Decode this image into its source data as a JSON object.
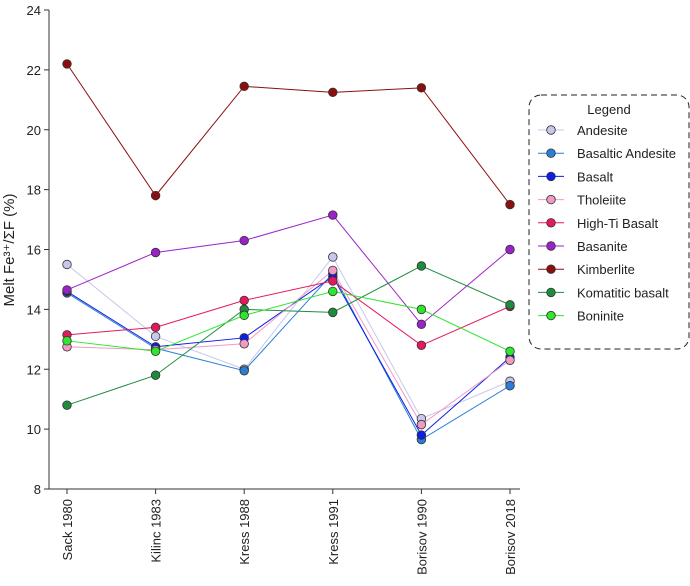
{
  "chart_data": {
    "type": "line",
    "ylabel": "Melt Fe³⁺/ΣF  (%)",
    "xlabel": "",
    "categories": [
      "Sack 1980",
      "Kilinc 1983",
      "Kress 1988",
      "Kress 1991",
      "Borisov 1990",
      "Borisov 2018"
    ],
    "ylim": [
      8,
      24
    ],
    "yticks": [
      8,
      10,
      12,
      14,
      16,
      18,
      20,
      22,
      24
    ],
    "grid": false,
    "legend": {
      "title": "Legend",
      "placement": "right"
    },
    "series": [
      {
        "name": "Andesite",
        "color": "#c8c8ee",
        "values": [
          15.5,
          13.1,
          12.0,
          15.75,
          10.35,
          11.6
        ]
      },
      {
        "name": "Basaltic Andesite",
        "color": "#2a7fd4",
        "values": [
          14.55,
          12.7,
          11.95,
          15.2,
          9.65,
          11.45
        ]
      },
      {
        "name": "Basalt",
        "color": "#0d1ee6",
        "values": [
          14.6,
          12.75,
          13.05,
          15.1,
          9.8,
          12.4
        ]
      },
      {
        "name": "Tholeiite",
        "color": "#f29ac6",
        "values": [
          12.75,
          12.65,
          12.85,
          15.3,
          10.15,
          12.3
        ]
      },
      {
        "name": "High-Ti Basalt",
        "color": "#e6185c",
        "values": [
          13.15,
          13.4,
          14.3,
          14.95,
          12.8,
          14.1
        ]
      },
      {
        "name": "Basanite",
        "color": "#9b22c9",
        "values": [
          14.65,
          15.9,
          16.3,
          17.15,
          13.5,
          16.0
        ]
      },
      {
        "name": "Kimberlite",
        "color": "#8b0f0f",
        "values": [
          22.2,
          17.8,
          21.45,
          21.25,
          21.4,
          17.5
        ]
      },
      {
        "name": "Komatitic basalt",
        "color": "#1e8c3e",
        "values": [
          10.8,
          11.8,
          14.0,
          13.9,
          15.45,
          14.15
        ]
      },
      {
        "name": "Boninite",
        "color": "#2ee62e",
        "values": [
          12.95,
          12.6,
          13.8,
          14.6,
          14.0,
          12.6
        ]
      }
    ]
  }
}
